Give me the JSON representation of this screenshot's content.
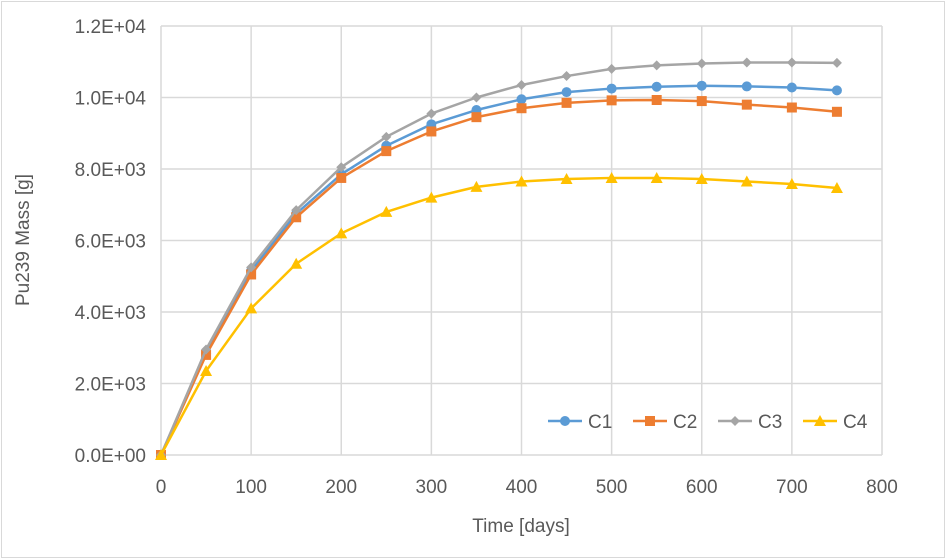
{
  "chart_data": {
    "type": "line",
    "title": "",
    "xlabel": "Time [days]",
    "ylabel": "Pu239 Mass [g]",
    "xlim": [
      0,
      800
    ],
    "ylim": [
      0,
      12000
    ],
    "xticks": [
      "0",
      "100",
      "200",
      "300",
      "400",
      "500",
      "600",
      "700",
      "800"
    ],
    "yticks": [
      "0.0E+00",
      "2.0E+03",
      "4.0E+03",
      "6.0E+03",
      "8.0E+03",
      "1.0E+04",
      "1.2E+04"
    ],
    "grid": true,
    "legend_position": "bottom-right",
    "x": [
      0,
      50,
      100,
      150,
      200,
      250,
      300,
      350,
      400,
      450,
      500,
      550,
      600,
      650,
      700,
      750
    ],
    "series": [
      {
        "name": "C1",
        "color": "#5b9bd5",
        "marker": "circle",
        "values": [
          0,
          2850,
          5150,
          6750,
          7850,
          8650,
          9250,
          9650,
          9950,
          10150,
          10250,
          10300,
          10330,
          10310,
          10280,
          10200
        ]
      },
      {
        "name": "C2",
        "color": "#ed7d31",
        "marker": "square",
        "values": [
          0,
          2800,
          5050,
          6650,
          7750,
          8500,
          9050,
          9450,
          9700,
          9850,
          9920,
          9930,
          9900,
          9800,
          9720,
          9600
        ]
      },
      {
        "name": "C3",
        "color": "#a5a5a5",
        "marker": "diamond",
        "values": [
          0,
          2950,
          5250,
          6850,
          8050,
          8900,
          9550,
          10000,
          10350,
          10600,
          10800,
          10900,
          10950,
          10980,
          10980,
          10970
        ]
      },
      {
        "name": "C4",
        "color": "#ffc000",
        "marker": "triangle",
        "values": [
          0,
          2350,
          4100,
          5350,
          6200,
          6800,
          7200,
          7500,
          7650,
          7720,
          7750,
          7750,
          7720,
          7650,
          7580,
          7470
        ]
      }
    ]
  }
}
